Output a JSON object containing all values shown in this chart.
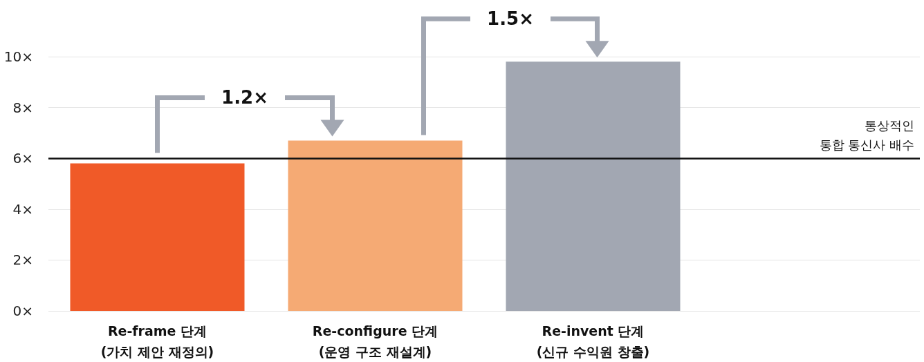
{
  "chart_data": {
    "type": "bar",
    "categories": [
      "Re-frame 단계\n(가치 제안 재정의)",
      "Re-configure 단계\n(운영 구조 재설계)",
      "Re-invent 단계\n(신규 수익원 창출)"
    ],
    "values": [
      5.8,
      6.7,
      9.8
    ],
    "colors": [
      "#f05a28",
      "#f5aa74",
      "#a2a7b2"
    ],
    "ylim": [
      0,
      10
    ],
    "yticks": [
      {
        "value": 0,
        "label": "0×"
      },
      {
        "value": 2,
        "label": "2×"
      },
      {
        "value": 4,
        "label": "4×"
      },
      {
        "value": 6,
        "label": "6×"
      },
      {
        "value": 8,
        "label": "8×"
      },
      {
        "value": 10,
        "label": "10×"
      }
    ],
    "grid": "y",
    "ref_lines": [
      {
        "axis": "y",
        "value": 6,
        "label": "통상적인\n통합 통신사 배수",
        "color": "#111111",
        "line_style": "solid"
      }
    ],
    "annotations": [
      "1.2×",
      "1.5×"
    ]
  }
}
